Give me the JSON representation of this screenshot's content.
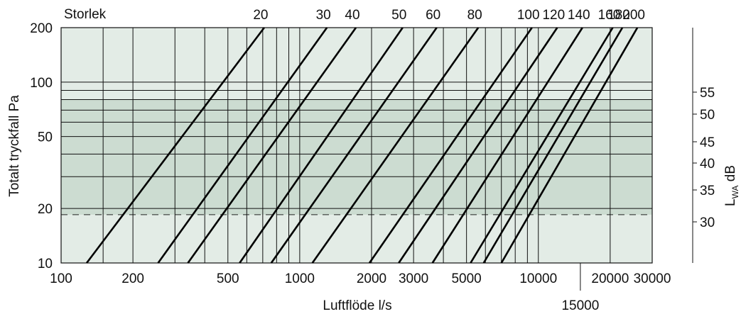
{
  "chart_data": {
    "type": "line",
    "title": "",
    "size_header": "Storlek",
    "xlabel": "Luftflöde l/s",
    "ylabel": "Totalt tryckfall Pa",
    "y2label": {
      "main": "L",
      "sub": "WA",
      "unit": " dB"
    },
    "xscale": "log",
    "yscale": "log",
    "xlim": [
      100,
      30000
    ],
    "ylim": [
      10,
      200
    ],
    "x_ticks": [
      {
        "value": 100,
        "label": "100"
      },
      {
        "value": 200,
        "label": "200"
      },
      {
        "value": 500,
        "label": "500"
      },
      {
        "value": 1000,
        "label": "1000"
      },
      {
        "value": 2000,
        "label": "2000"
      },
      {
        "value": 3000,
        "label": "3000"
      },
      {
        "value": 5000,
        "label": "5000"
      },
      {
        "value": 10000,
        "label": "10000"
      },
      {
        "value": 20000,
        "label": "20000"
      },
      {
        "value": 30000,
        "label": "30000"
      }
    ],
    "x_extra_tick": {
      "value": 15000,
      "label": "15000"
    },
    "y_ticks": [
      {
        "value": 10,
        "label": "10"
      },
      {
        "value": 20,
        "label": "20"
      },
      {
        "value": 50,
        "label": "50"
      },
      {
        "value": 100,
        "label": "100"
      },
      {
        "value": 200,
        "label": "200"
      }
    ],
    "x_grid": [
      150,
      200,
      300,
      400,
      500,
      600,
      700,
      800,
      900,
      1000,
      2000,
      3000,
      4000,
      5000,
      6000,
      7000,
      8000,
      9000,
      10000,
      20000
    ],
    "y_grid": [
      20,
      30,
      40,
      50,
      60,
      70,
      80,
      90,
      100
    ],
    "sound_ticks": [
      {
        "value": 55,
        "label": "55"
      },
      {
        "value": 50,
        "label": "50"
      },
      {
        "value": 45,
        "label": "45"
      },
      {
        "value": 40,
        "label": "40"
      },
      {
        "value": 35,
        "label": "35"
      },
      {
        "value": 30,
        "label": "30"
      }
    ],
    "recommended_band": {
      "y_low": 18.5,
      "y_high": 80
    },
    "series": [
      {
        "name": "20",
        "points": [
          [
            128,
            10
          ],
          [
            710,
            200
          ]
        ]
      },
      {
        "name": "30",
        "points": [
          [
            255,
            10
          ],
          [
            1300,
            200
          ]
        ]
      },
      {
        "name": "40",
        "points": [
          [
            340,
            10
          ],
          [
            1720,
            200
          ]
        ]
      },
      {
        "name": "50",
        "points": [
          [
            560,
            10
          ],
          [
            2700,
            200
          ]
        ]
      },
      {
        "name": "60",
        "points": [
          [
            760,
            10
          ],
          [
            3750,
            200
          ]
        ]
      },
      {
        "name": "80",
        "points": [
          [
            1130,
            10
          ],
          [
            5600,
            200
          ]
        ]
      },
      {
        "name": "100",
        "points": [
          [
            1960,
            10
          ],
          [
            9400,
            200
          ]
        ]
      },
      {
        "name": "120",
        "points": [
          [
            2600,
            10
          ],
          [
            12000,
            200
          ]
        ]
      },
      {
        "name": "140",
        "points": [
          [
            3600,
            10
          ],
          [
            15300,
            200
          ]
        ]
      },
      {
        "name": "160",
        "points": [
          [
            5200,
            10
          ],
          [
            20500,
            200
          ]
        ]
      },
      {
        "name": "180",
        "points": [
          [
            5900,
            10
          ],
          [
            22500,
            200
          ]
        ]
      },
      {
        "name": "200",
        "points": [
          [
            7000,
            10
          ],
          [
            26000,
            200
          ]
        ]
      }
    ],
    "colors": {
      "background": "#e3ece6",
      "band": "#ccdcd1",
      "grid": "#111111",
      "line": "#000000"
    },
    "grid": true
  }
}
